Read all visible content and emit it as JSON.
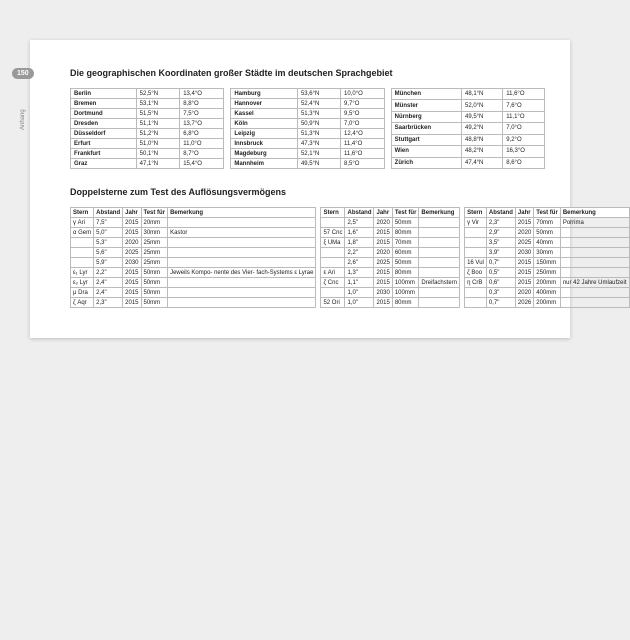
{
  "pageNumber": "150",
  "sideLabel": "Anhang",
  "section1": {
    "title": "Die geographischen Koordinaten großer Städte im deutschen Sprachgebiet",
    "blocks": [
      [
        [
          "Berlin",
          "52,5°N",
          "13,4°O"
        ],
        [
          "Bremen",
          "53,1°N",
          "8,8°O"
        ],
        [
          "Dortmund",
          "51,5°N",
          "7,5°O"
        ],
        [
          "Dresden",
          "51,1°N",
          "13,7°O"
        ],
        [
          "Düsseldorf",
          "51,2°N",
          "6,8°O"
        ],
        [
          "Erfurt",
          "51,0°N",
          "11,0°O"
        ],
        [
          "Frankfurt",
          "50,1°N",
          "8,7°O"
        ],
        [
          "Graz",
          "47,1°N",
          "15,4°O"
        ]
      ],
      [
        [
          "Hamburg",
          "53,6°N",
          "10,0°O"
        ],
        [
          "Hannover",
          "52,4°N",
          "9,7°O"
        ],
        [
          "Kassel",
          "51,3°N",
          "9,5°O"
        ],
        [
          "Köln",
          "50,9°N",
          "7,0°O"
        ],
        [
          "Leipzig",
          "51,3°N",
          "12,4°O"
        ],
        [
          "Innsbruck",
          "47,3°N",
          "11,4°O"
        ],
        [
          "Magdeburg",
          "52,1°N",
          "11,6°O"
        ],
        [
          "Mannheim",
          "49,5°N",
          "8,5°O"
        ]
      ],
      [
        [
          "München",
          "48,1°N",
          "11,6°O"
        ],
        [
          "Münster",
          "52,0°N",
          "7,6°O"
        ],
        [
          "Nürnberg",
          "49,5°N",
          "11,1°O"
        ],
        [
          "Saarbrücken",
          "49,2°N",
          "7,0°O"
        ],
        [
          "Stuttgart",
          "48,8°N",
          "9,2°O"
        ],
        [
          "Wien",
          "48,2°N",
          "16,3°O"
        ],
        [
          "Zürich",
          "47,4°N",
          "8,6°O"
        ]
      ]
    ]
  },
  "section2": {
    "title": "Doppelsterne zum Test des Auflösungsvermögens",
    "headers": [
      "Stern",
      "Abstand",
      "Jahr",
      "Test für",
      "Bemerkung"
    ],
    "blocks": [
      [
        [
          "γ Ari",
          "7,5\"",
          "2015",
          "20mm",
          ""
        ],
        [
          "α Gem",
          "5,0\"",
          "2015",
          "30mm",
          "Kastor"
        ],
        [
          "",
          "5,3\"",
          "2020",
          "25mm",
          ""
        ],
        [
          "",
          "5,6\"",
          "2025",
          "25mm",
          ""
        ],
        [
          "",
          "5,9\"",
          "2030",
          "25mm",
          ""
        ],
        [
          "ε₁ Lyr",
          "2,2\"",
          "2015",
          "50mm",
          "Jeweils Kompo-\nnente des Vier-\nfach-Systems\nε Lyrae"
        ],
        [
          "ε₂ Lyr",
          "2,4\"",
          "2015",
          "50mm",
          ""
        ],
        [
          "μ Dra",
          "2,4\"",
          "2015",
          "50mm",
          ""
        ],
        [
          "ζ Aqr",
          "2,3\"",
          "2015",
          "50mm",
          ""
        ]
      ],
      [
        [
          "",
          "2,5\"",
          "2020",
          "50mm",
          ""
        ],
        [
          "57 Cnc",
          "1,6\"",
          "2015",
          "80mm",
          ""
        ],
        [
          "ξ UMa",
          "1,8\"",
          "2015",
          "70mm",
          ""
        ],
        [
          "",
          "2,2\"",
          "2020",
          "60mm",
          ""
        ],
        [
          "",
          "2,6\"",
          "2025",
          "50mm",
          ""
        ],
        [
          "ε Ari",
          "1,3\"",
          "2015",
          "80mm",
          ""
        ],
        [
          "ζ Cnc",
          "1,1\"",
          "2015",
          "100mm",
          "Dreifachstern"
        ],
        [
          "",
          "1,0\"",
          "2030",
          "100mm",
          ""
        ],
        [
          "52 Ori",
          "1,0\"",
          "2015",
          "80mm",
          ""
        ]
      ],
      [
        [
          "γ Vir",
          "2,3\"",
          "2015",
          "70mm",
          "Porrima"
        ],
        [
          "",
          "2,9\"",
          "2020",
          "50mm",
          ""
        ],
        [
          "",
          "3,5\"",
          "2025",
          "40mm",
          ""
        ],
        [
          "",
          "3,9\"",
          "2030",
          "30mm",
          ""
        ],
        [
          "16 Vul",
          "0,7\"",
          "2015",
          "150mm",
          ""
        ],
        [
          "ζ Boo",
          "0,5\"",
          "2015",
          "250mm",
          ""
        ],
        [
          "η CrB",
          "0,6\"",
          "2015",
          "200mm",
          "nur 42 Jahre\nUmlaufzeit"
        ],
        [
          "",
          "0,3\"",
          "2020",
          "400mm",
          ""
        ],
        [
          "",
          "0,7\"",
          "2026",
          "200mm",
          ""
        ]
      ]
    ]
  }
}
